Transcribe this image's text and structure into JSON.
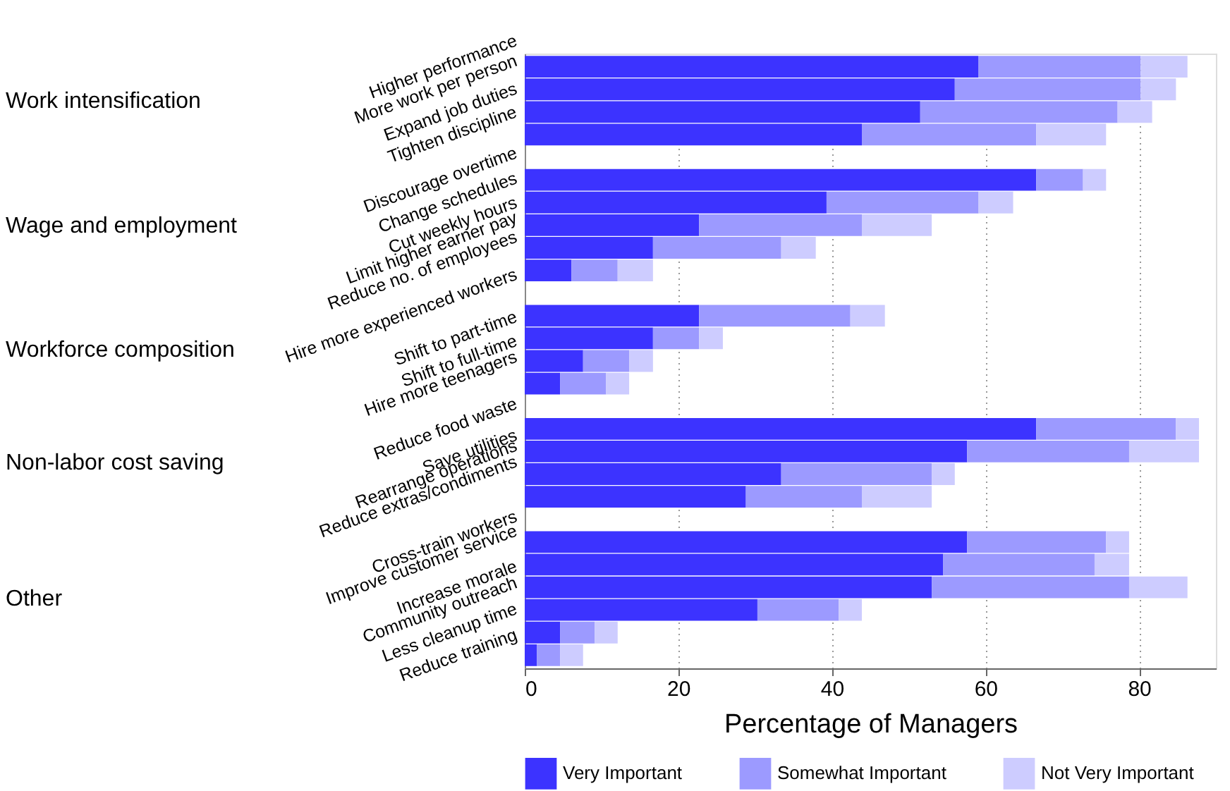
{
  "chart_data": {
    "type": "bar",
    "orientation": "horizontal",
    "stacked": true,
    "xlabel": "Percentage of Managers",
    "categories": [
      "Higher performance",
      "More work per person",
      "Expand job duties",
      "Tighten discipline",
      null,
      "Discourage overtime",
      "Change schedules",
      "Cut weekly hours",
      "Limit higher earner pay",
      "Reduce no. of employees",
      null,
      "Hire more experienced workers",
      "Shift to part-time",
      "Shift to full-time",
      "Hire more teenagers",
      null,
      "Reduce food waste",
      "Save utilities",
      "Rearrange operations",
      "Reduce extras/condiments",
      null,
      "Cross-train workers",
      "Improve customer service",
      "Increase morale",
      "Community outreach",
      "Less cleanup time",
      "Reduce training"
    ],
    "annotations": [
      "Work intensification",
      "Wage and employment",
      "Workforce composition",
      "Non-labor cost saving",
      "Other"
    ],
    "series": [
      {
        "name": "Very Important",
        "color": "#3c33ff",
        "values": [
          59.1,
          56.0,
          51.5,
          43.9,
          null,
          66.6,
          39.3,
          22.7,
          16.7,
          6.1,
          null,
          22.7,
          16.7,
          7.6,
          4.6,
          null,
          66.6,
          57.6,
          33.4,
          28.8,
          null,
          57.6,
          54.5,
          53.0,
          30.3,
          4.6,
          1.6
        ]
      },
      {
        "name": "Somewhat Important",
        "color": "#9c9aff",
        "values": [
          21.1,
          24.2,
          25.7,
          22.7,
          null,
          6.1,
          19.8,
          21.2,
          16.7,
          6.0,
          null,
          19.7,
          6.0,
          6.0,
          6.0,
          null,
          18.2,
          21.1,
          19.6,
          15.1,
          null,
          18.1,
          19.7,
          25.7,
          10.6,
          4.5,
          3.0
        ]
      },
      {
        "name": "Not Very Important",
        "color": "#cdccff",
        "values": [
          6.1,
          4.6,
          4.5,
          9.1,
          null,
          3.0,
          4.5,
          9.1,
          4.5,
          4.6,
          null,
          4.5,
          3.1,
          3.1,
          3.0,
          null,
          3.0,
          9.1,
          3.0,
          9.1,
          null,
          3.0,
          4.5,
          7.6,
          3.0,
          3.0,
          3.0
        ]
      }
    ],
    "xlim": [
      0,
      90
    ],
    "xticks": [
      0,
      20,
      40,
      60,
      80
    ],
    "grid": "x",
    "legend": "bottom"
  }
}
